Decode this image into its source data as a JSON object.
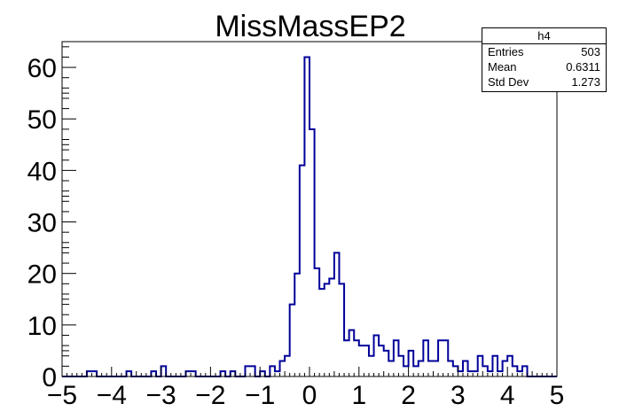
{
  "chart_data": {
    "type": "bar",
    "title": "MissMassEP2",
    "xlabel": "",
    "ylabel": "",
    "xlim": [
      -5,
      5
    ],
    "ylim": [
      0,
      65
    ],
    "x_ticks": [
      "−5",
      "−4",
      "−3",
      "−2",
      "−1",
      "0",
      "1",
      "2",
      "3",
      "4",
      "5"
    ],
    "y_ticks": [
      "0",
      "10",
      "20",
      "30",
      "40",
      "50",
      "60"
    ],
    "bin_width": 0.1,
    "bin_low_edges": [
      -5.0,
      -4.9,
      -4.8,
      -4.7,
      -4.6,
      -4.5,
      -4.4,
      -4.3,
      -4.2,
      -4.1,
      -4.0,
      -3.9,
      -3.8,
      -3.7,
      -3.6,
      -3.5,
      -3.4,
      -3.3,
      -3.2,
      -3.1,
      -3.0,
      -2.9,
      -2.8,
      -2.7,
      -2.6,
      -2.5,
      -2.4,
      -2.3,
      -2.2,
      -2.1,
      -2.0,
      -1.9,
      -1.8,
      -1.7,
      -1.6,
      -1.5,
      -1.4,
      -1.3,
      -1.2,
      -1.1,
      -1.0,
      -0.9,
      -0.8,
      -0.7,
      -0.6,
      -0.5,
      -0.4,
      -0.3,
      -0.2,
      -0.1,
      0.0,
      0.1,
      0.2,
      0.3,
      0.4,
      0.5,
      0.6,
      0.7,
      0.8,
      0.9,
      1.0,
      1.1,
      1.2,
      1.3,
      1.4,
      1.5,
      1.6,
      1.7,
      1.8,
      1.9,
      2.0,
      2.1,
      2.2,
      2.3,
      2.4,
      2.5,
      2.6,
      2.7,
      2.8,
      2.9,
      3.0,
      3.1,
      3.2,
      3.3,
      3.4,
      3.5,
      3.6,
      3.7,
      3.8,
      3.9,
      4.0,
      4.1,
      4.2,
      4.3,
      4.4,
      4.5,
      4.6,
      4.7,
      4.8,
      4.9
    ],
    "counts": [
      0,
      0,
      0,
      0,
      0,
      1,
      1,
      0,
      0,
      0,
      0,
      0,
      0,
      1,
      0,
      0,
      0,
      0,
      1,
      0,
      2,
      0,
      0,
      0,
      0,
      1,
      1,
      0,
      0,
      0,
      0,
      0,
      1,
      0,
      1,
      0,
      0,
      2,
      2,
      0,
      1,
      0,
      2,
      1,
      3,
      4,
      14,
      20,
      41,
      62,
      48,
      21,
      17,
      18,
      19,
      24,
      18,
      7,
      9,
      7,
      6,
      6,
      4,
      8,
      6,
      5,
      3,
      7,
      4,
      2,
      5,
      2,
      3,
      7,
      3,
      3,
      7,
      7,
      3,
      2,
      1,
      3,
      1,
      1,
      4,
      2,
      1,
      4,
      1,
      3,
      4,
      2,
      1,
      2,
      0,
      0,
      0,
      0,
      0,
      0
    ],
    "series": [
      {
        "name": "h4",
        "color": "#000099"
      }
    ],
    "legend_position": "top-right",
    "grid": false
  },
  "stats_box": {
    "name": "h4",
    "rows": [
      {
        "label": "Entries",
        "value": "503"
      },
      {
        "label": "Mean",
        "value": "0.6311"
      },
      {
        "label": "Std Dev",
        "value": "1.273"
      }
    ]
  }
}
